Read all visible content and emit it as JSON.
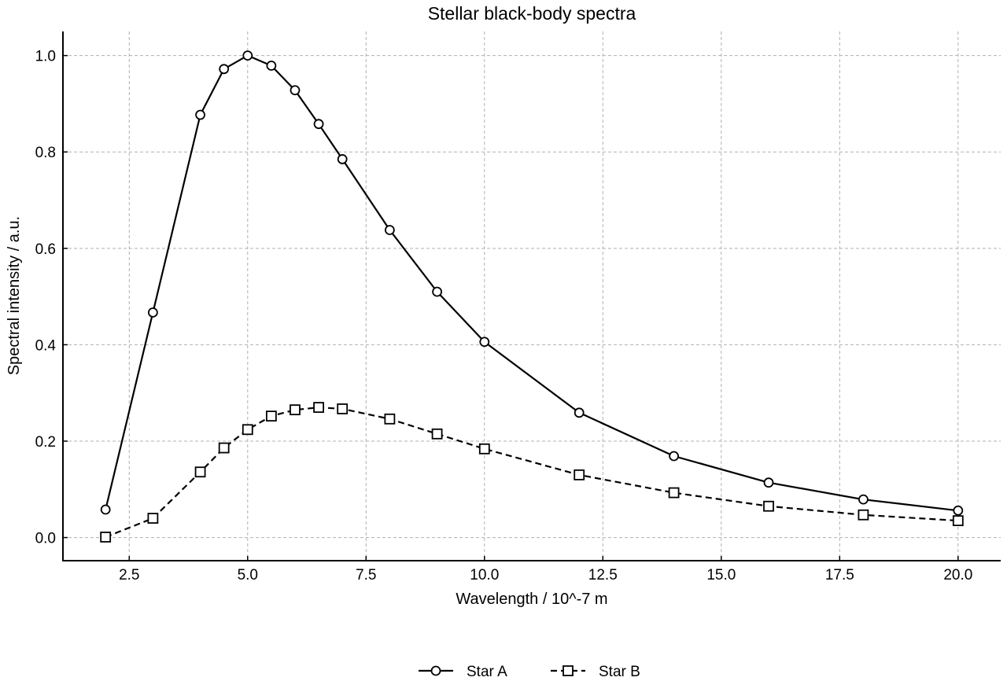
{
  "chart_data": {
    "type": "line",
    "title": "Stellar black-body spectra",
    "xlabel": "Wavelength / 10^-7 m",
    "ylabel": "Spectral intensity / a.u.",
    "xlim": [
      1.1,
      20.9
    ],
    "ylim": [
      -0.048,
      1.05
    ],
    "xticks": [
      2.5,
      5.0,
      7.5,
      10.0,
      12.5,
      15.0,
      17.5,
      20.0
    ],
    "xtick_labels": [
      "2.5",
      "5.0",
      "7.5",
      "10.0",
      "12.5",
      "15.0",
      "17.5",
      "20.0"
    ],
    "yticks": [
      0.0,
      0.2,
      0.4,
      0.6,
      0.8,
      1.0
    ],
    "ytick_labels": [
      "0.0",
      "0.2",
      "0.4",
      "0.6",
      "0.8",
      "1.0"
    ],
    "grid": true,
    "legend_position": "bottom-center",
    "series": [
      {
        "name": "Star A",
        "marker": "circle",
        "line_style": "solid",
        "color": "#000000",
        "x": [
          2,
          3,
          4,
          4.5,
          5,
          5.5,
          6,
          6.5,
          7,
          8,
          9,
          10,
          12,
          14,
          16,
          18,
          20
        ],
        "y": [
          0.058,
          0.467,
          0.877,
          0.972,
          1.0,
          0.979,
          0.928,
          0.858,
          0.785,
          0.638,
          0.51,
          0.406,
          0.259,
          0.169,
          0.114,
          0.079,
          0.056
        ]
      },
      {
        "name": "Star B",
        "marker": "square",
        "line_style": "dashed",
        "color": "#000000",
        "x": [
          2,
          3,
          4,
          4.5,
          5,
          5.5,
          6,
          6.5,
          7,
          8,
          9,
          10,
          12,
          14,
          16,
          18,
          20
        ],
        "y": [
          0.001,
          0.04,
          0.136,
          0.186,
          0.224,
          0.252,
          0.265,
          0.27,
          0.267,
          0.246,
          0.215,
          0.184,
          0.13,
          0.093,
          0.065,
          0.047,
          0.035
        ]
      }
    ]
  }
}
